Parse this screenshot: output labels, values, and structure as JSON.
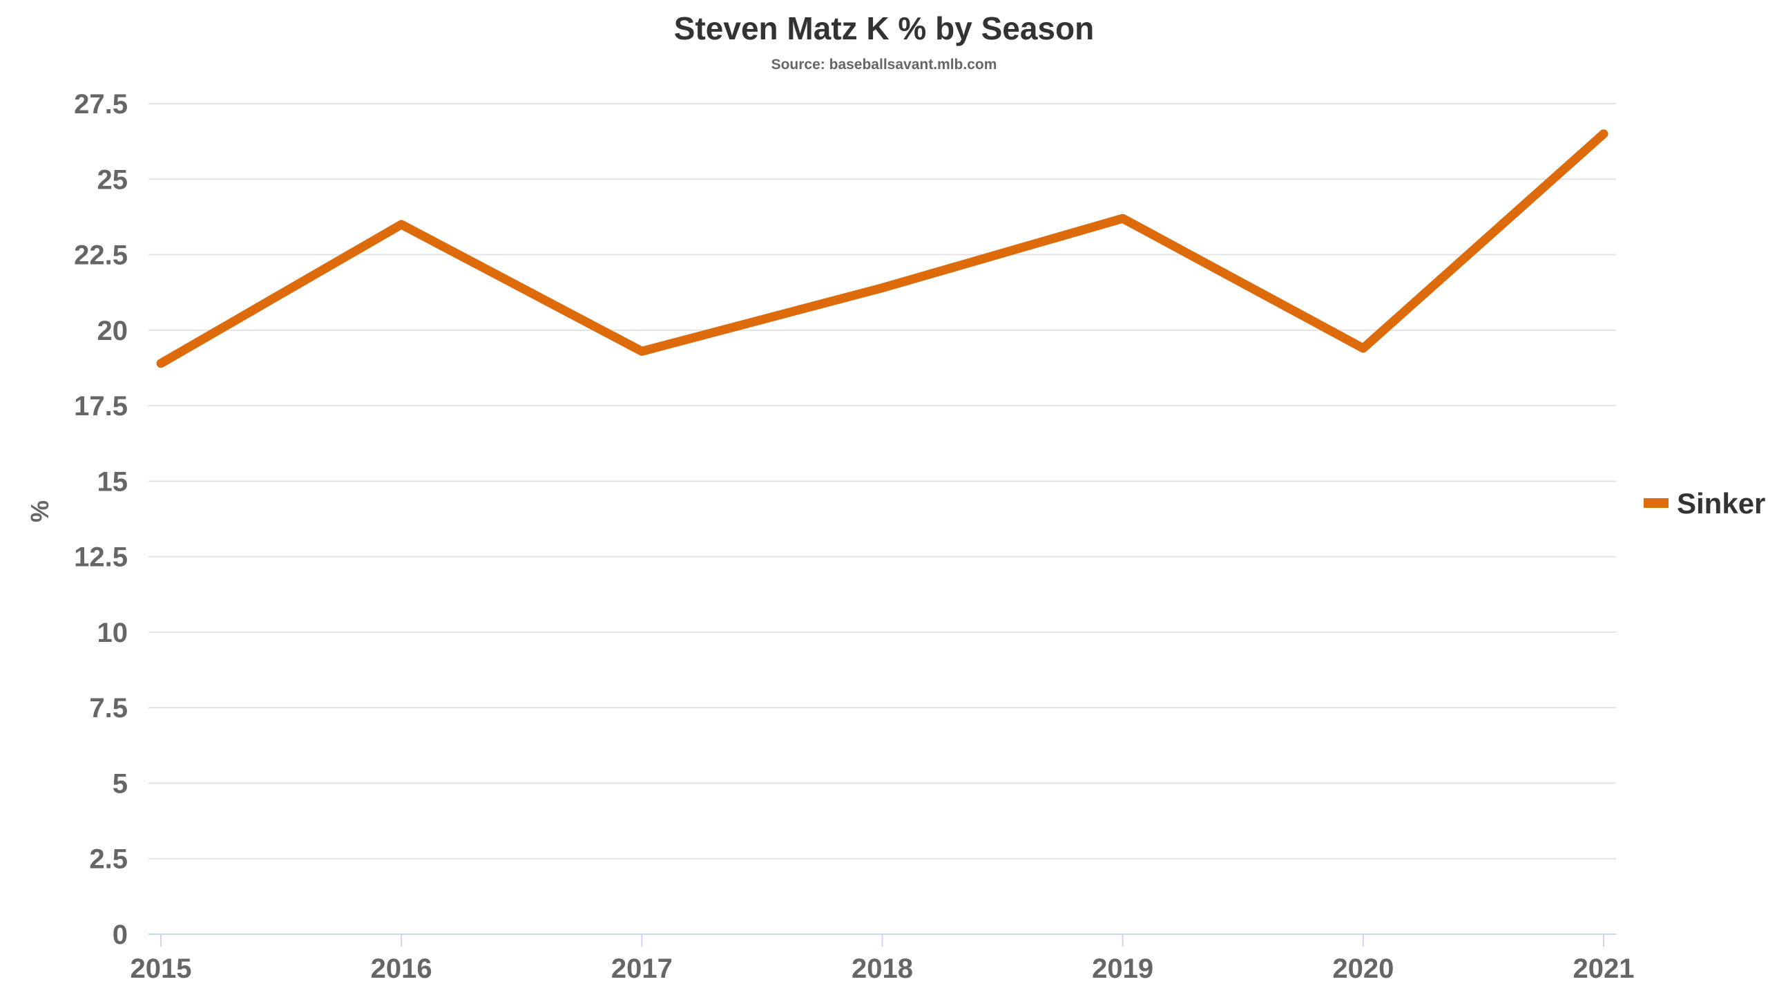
{
  "chart_data": {
    "type": "line",
    "title": "Steven Matz K % by Season",
    "subtitle": "Source: baseballsavant.mlb.com",
    "xlabel": "",
    "ylabel": "%",
    "x": [
      "2015",
      "2016",
      "2017",
      "2018",
      "2019",
      "2020",
      "2021"
    ],
    "series": [
      {
        "name": "Sinker",
        "color": "#DD6B0B",
        "values": [
          18.9,
          23.5,
          19.3,
          21.4,
          23.7,
          19.4,
          26.5
        ]
      }
    ],
    "ylim": [
      0,
      27.5
    ],
    "yticks": [
      "0",
      "2.5",
      "5",
      "7.5",
      "10",
      "12.5",
      "15",
      "17.5",
      "20",
      "22.5",
      "25",
      "27.5"
    ],
    "grid": true,
    "legend_position": "right"
  }
}
